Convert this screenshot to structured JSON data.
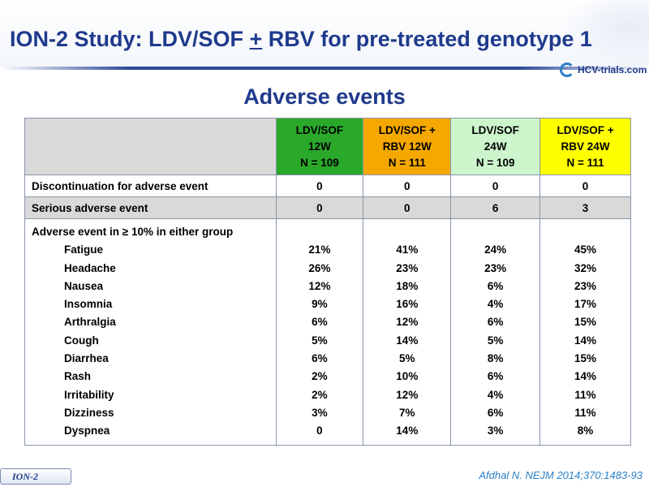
{
  "slide": {
    "title_pre": "ION-2 Study: LDV/SOF ",
    "title_plus": "+",
    "title_post": " RBV for pre-treated genotype 1",
    "subtitle": "Adverse events",
    "logo_text": "HCV-trials.com",
    "footer_label": "ION-2",
    "reference": "Afdhal N. NEJM 2014;370:1483-93"
  },
  "table": {
    "headers": [
      {
        "line1": "LDV/SOF",
        "line2": "12W",
        "line3": "N = 109",
        "color": "#2aa82a"
      },
      {
        "line1": "LDV/SOF +",
        "line2": "RBV 12W",
        "line3": "N = 111",
        "color": "#f5a800"
      },
      {
        "line1": "LDV/SOF",
        "line2": "24W",
        "line3": "N = 109",
        "color": "#ccf5cc"
      },
      {
        "line1": "LDV/SOF +",
        "line2": "RBV 24W",
        "line3": "N = 111",
        "color": "#ffff00"
      }
    ],
    "rows": [
      {
        "label": "Discontinuation for adverse event",
        "values": [
          "0",
          "0",
          "0",
          "0"
        ]
      },
      {
        "label": "Serious adverse event",
        "values": [
          "0",
          "0",
          "6",
          "3"
        ]
      }
    ],
    "ae_group": {
      "label": "Adverse event in ≥ 10% in either group",
      "items": [
        {
          "name": "Fatigue",
          "values": [
            "21%",
            "41%",
            "24%",
            "45%"
          ]
        },
        {
          "name": "Headache",
          "values": [
            "26%",
            "23%",
            "23%",
            "32%"
          ]
        },
        {
          "name": "Nausea",
          "values": [
            "12%",
            "18%",
            "6%",
            "23%"
          ]
        },
        {
          "name": "Insomnia",
          "values": [
            "9%",
            "16%",
            "4%",
            "17%"
          ]
        },
        {
          "name": "Arthralgia",
          "values": [
            "6%",
            "12%",
            "6%",
            "15%"
          ]
        },
        {
          "name": "Cough",
          "values": [
            "5%",
            "14%",
            "5%",
            "14%"
          ]
        },
        {
          "name": "Diarrhea",
          "values": [
            "6%",
            "5%",
            "8%",
            "15%"
          ]
        },
        {
          "name": "Rash",
          "values": [
            "2%",
            "10%",
            "6%",
            "14%"
          ]
        },
        {
          "name": "Irritability",
          "values": [
            "2%",
            "12%",
            "4%",
            "11%"
          ]
        },
        {
          "name": "Dizziness",
          "values": [
            "3%",
            "7%",
            "6%",
            "11%"
          ]
        },
        {
          "name": "Dyspnea",
          "values": [
            "0",
            "14%",
            "3%",
            "8%"
          ]
        }
      ]
    }
  }
}
